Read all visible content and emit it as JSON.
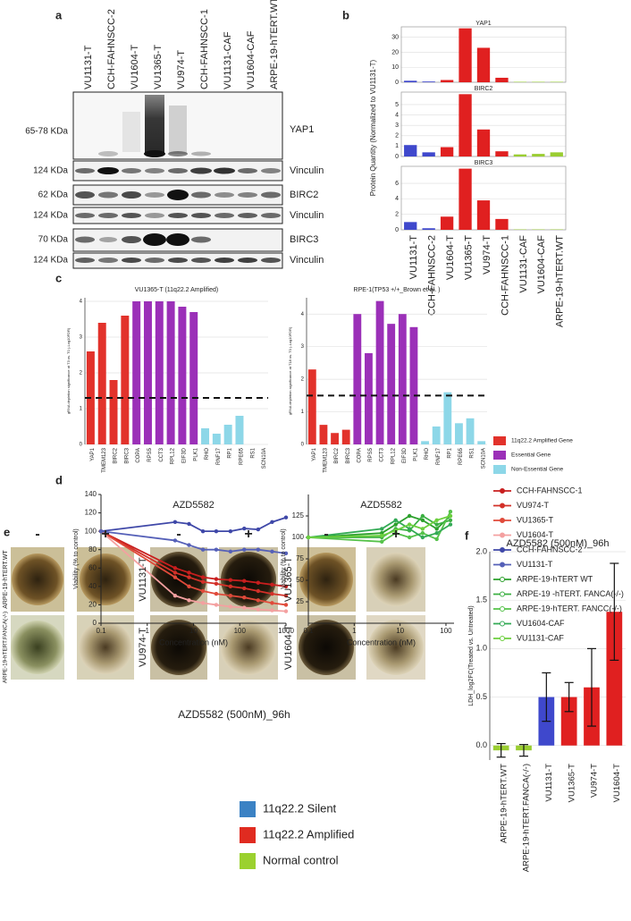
{
  "panel_labels": [
    "a",
    "b",
    "c",
    "d",
    "e",
    "f"
  ],
  "blot": {
    "lanes": [
      {
        "label": "VU1131-T",
        "color": "#3a7dc9"
      },
      {
        "label": "CCH-FAHNSCC-2",
        "color": "#3a7dc9"
      },
      {
        "label": "VU1604-T",
        "color": "#e02b20"
      },
      {
        "label": "VU1365-T",
        "color": "#e02b20"
      },
      {
        "label": "VU974-T",
        "color": "#e02b20"
      },
      {
        "label": "CCH-FAHNSCC-1",
        "color": "#e02b20"
      },
      {
        "label": "VU1131-CAF",
        "color": "#1fa83a"
      },
      {
        "label": "VU1604-CAF",
        "color": "#1fa83a"
      },
      {
        "label": "ARPE-19-hTERT.WT",
        "color": "#1fa83a"
      }
    ],
    "rows": [
      {
        "size": "65-78 KDa",
        "protein": "YAP1"
      },
      {
        "size": "124 KDa",
        "protein": "Vinculin"
      },
      {
        "size": "62 KDa",
        "protein": "BIRC2"
      },
      {
        "size": "124 KDa",
        "protein": "Vinculin"
      },
      {
        "size": "70 KDa",
        "protein": "BIRC3"
      },
      {
        "size": "124 KDa",
        "protein": "Vinculin"
      }
    ]
  },
  "chart_data": [
    {
      "type": "faceted_bar",
      "ylabel": "Protein Quantity (Normalized to VU1131-T)",
      "categories": [
        "VU1131-T",
        "CCH-FAHNSCC-2",
        "VU1604-T",
        "VU1365-T",
        "VU974-T",
        "CCH-FAHNSCC-1",
        "VU1131-CAF",
        "VU1604-CAF",
        "ARPE-19-hTERT.WT"
      ],
      "colors": [
        "#3f48cc",
        "#3f48cc",
        "#e02020",
        "#e02020",
        "#e02020",
        "#e02020",
        "#9acd32",
        "#9acd32",
        "#9acd32"
      ],
      "grid": true,
      "facets": [
        {
          "title": "YAP1",
          "values": [
            1,
            0.5,
            1.5,
            36,
            23,
            3,
            0.3,
            0.3,
            0.3
          ],
          "ylim": [
            0,
            37
          ],
          "yticks": [
            0,
            10,
            20,
            30
          ]
        },
        {
          "title": "BIRC2",
          "values": [
            1.1,
            0.4,
            0.9,
            6,
            2.6,
            0.5,
            0.2,
            0.25,
            0.4
          ],
          "ylim": [
            0,
            6.2
          ],
          "yticks": [
            0,
            1,
            2,
            3,
            4,
            5
          ]
        },
        {
          "title": "BIRC3",
          "values": [
            1,
            0.2,
            1.7,
            7.9,
            3.8,
            1.4,
            0.05,
            0.05,
            0.05
          ],
          "ylim": [
            0,
            8.2
          ],
          "yticks": [
            0,
            2,
            4,
            6
          ]
        }
      ]
    },
    {
      "type": "bar",
      "title": "VU1365-T (11q22.2 Amplified)",
      "ylabel": "gRNA depletion significance at T3 vs. T0 (-Log10FDR)",
      "categories": [
        "YAP1",
        "TMEM123",
        "BIRC2",
        "BIRC3",
        "COPA",
        "RPS5",
        "CCT3",
        "RPL12",
        "EIF3D",
        "PLK1",
        "RHO",
        "RNF17",
        "RP1",
        "RPE65",
        "RS1",
        "SCN10A"
      ],
      "values": [
        2.6,
        3.4,
        1.8,
        3.6,
        4,
        4,
        4,
        4,
        3.85,
        3.7,
        0.45,
        0.3,
        0.55,
        0.8,
        0,
        0
      ],
      "colors": [
        "#e2322b",
        "#e2322b",
        "#e2322b",
        "#e2322b",
        "#9b30b8",
        "#9b30b8",
        "#9b30b8",
        "#9b30b8",
        "#9b30b8",
        "#9b30b8",
        "#8dd7e8",
        "#8dd7e8",
        "#8dd7e8",
        "#8dd7e8",
        "#8dd7e8",
        "#8dd7e8"
      ],
      "ylim": [
        0,
        4.1
      ],
      "yticks": [
        0,
        1,
        2,
        3,
        4
      ],
      "threshold": 1.3,
      "grid": true
    },
    {
      "type": "bar",
      "title": "RPE-1(TP53 +/+_Brown et al. )",
      "ylabel": "gRNA depletion significance at T18 vs. T0 (-Log10FDR)",
      "categories": [
        "YAP1",
        "TMEM123",
        "BIRC2",
        "BIRC3",
        "COPA",
        "RPS5",
        "CCT3",
        "RPL12",
        "EIF3D",
        "PLK1",
        "RHO",
        "RNF17",
        "RP1",
        "RPE65",
        "RS1",
        "SCN10A"
      ],
      "values": [
        2.3,
        0.6,
        0.35,
        0.45,
        4,
        2.8,
        4.4,
        3.7,
        4,
        3.6,
        0.1,
        0.55,
        1.6,
        0.65,
        0.8,
        0.1
      ],
      "colors": [
        "#e2322b",
        "#e2322b",
        "#e2322b",
        "#e2322b",
        "#9b30b8",
        "#9b30b8",
        "#9b30b8",
        "#9b30b8",
        "#9b30b8",
        "#9b30b8",
        "#8dd7e8",
        "#8dd7e8",
        "#8dd7e8",
        "#8dd7e8",
        "#8dd7e8",
        "#8dd7e8"
      ],
      "ylim": [
        0,
        4.5
      ],
      "yticks": [
        0,
        1,
        2,
        3,
        4
      ],
      "threshold": 1.5,
      "grid": true,
      "legend": [
        {
          "name": "11q22.2 Amplified Gene",
          "color": "#e2322b"
        },
        {
          "name": "Essential Gene",
          "color": "#9b30b8"
        },
        {
          "name": "Non-Essential Gene",
          "color": "#8dd7e8"
        }
      ]
    },
    {
      "type": "line",
      "title": "AZD5582",
      "xlabel": "Concentration (nM)",
      "ylabel": "Viability (% to control)",
      "xscale": "log",
      "x": [
        0.1,
        4,
        8,
        16,
        31,
        63,
        125,
        250,
        500,
        1000
      ],
      "xlim": [
        0.1,
        1000
      ],
      "xticks": [
        0.1,
        1,
        10,
        100,
        1000
      ],
      "ylim": [
        0,
        140
      ],
      "yticks": [
        0,
        20,
        40,
        60,
        80,
        100,
        120,
        140
      ],
      "series": [
        {
          "name": "CCH-FAHNSCC-1",
          "color": "#c81e1e",
          "values": [
            100,
            60,
            55,
            50,
            48,
            47,
            46,
            44,
            42,
            40
          ]
        },
        {
          "name": "VU974-T",
          "color": "#d33028",
          "values": [
            100,
            55,
            50,
            45,
            43,
            40,
            38,
            35,
            32,
            30
          ]
        },
        {
          "name": "VU1365-T",
          "color": "#e04a3a",
          "values": [
            100,
            50,
            40,
            35,
            32,
            30,
            28,
            25,
            22,
            20
          ]
        },
        {
          "name": "VU1604-T",
          "color": "#f4a0a0",
          "values": [
            100,
            30,
            25,
            22,
            20,
            18,
            17,
            15,
            14,
            13
          ]
        },
        {
          "name": "CCH-FAHNSCC-2",
          "color": "#3f48a8",
          "values": [
            100,
            110,
            108,
            100,
            100,
            100,
            103,
            102,
            110,
            115
          ]
        },
        {
          "name": "VU1131-T",
          "color": "#5560b8",
          "values": [
            100,
            90,
            85,
            80,
            80,
            78,
            80,
            80,
            78,
            76
          ]
        }
      ]
    },
    {
      "type": "line",
      "title": "AZD5582",
      "xlabel": "Concentration (nM)",
      "ylabel": "Viability (% to control)",
      "xscale": "log",
      "x": [
        0.1,
        4,
        8,
        16,
        31,
        63,
        125
      ],
      "xlim": [
        0.1,
        150
      ],
      "xticks": [
        0.1,
        1,
        10,
        100
      ],
      "ylim": [
        0,
        150
      ],
      "yticks": [
        25,
        50,
        75,
        100,
        125
      ],
      "series": [
        {
          "name": "ARPE-19-hTERT WT",
          "color": "#2ca02c",
          "values": [
            100,
            105,
            115,
            125,
            120,
            110,
            125
          ]
        },
        {
          "name": "ARPE-19 -hTERT. FANCA(-/-)",
          "color": "#3cb043",
          "values": [
            100,
            100,
            110,
            108,
            125,
            115,
            120
          ]
        },
        {
          "name": "ARPE-19-hTERT. FANCC(-/-)",
          "color": "#55c24a",
          "values": [
            100,
            95,
            105,
            100,
            105,
            98,
            130
          ]
        },
        {
          "name": "VU1604-CAF",
          "color": "#33aa55",
          "values": [
            100,
            110,
            120,
            110,
            100,
            105,
            115
          ]
        },
        {
          "name": "VU1131-CAF",
          "color": "#6ccf3e",
          "values": [
            100,
            102,
            108,
            115,
            110,
            120,
            125
          ]
        }
      ]
    },
    {
      "type": "bar",
      "title": "AZD5582 (500nM)_96h",
      "ylabel": "LDH_log2FC(Treated vs. Untreated)",
      "categories": [
        "ARPE-19-hTERT.WT",
        "ARPE-19-hTERT.FANCA(-/-)",
        "VU1131-T",
        "VU1365-T",
        "VU974-T",
        "VU1604-T"
      ],
      "values": [
        -0.05,
        -0.05,
        0.5,
        0.5,
        0.6,
        1.38
      ],
      "errors": [
        0.07,
        0.06,
        0.25,
        0.15,
        0.4,
        0.5
      ],
      "colors": [
        "#9acd32",
        "#9acd32",
        "#3f48cc",
        "#e02020",
        "#e02020",
        "#e02020"
      ],
      "ylim": [
        -0.15,
        2.0
      ],
      "yticks": [
        {
          "value": 0,
          "label": "0.0"
        },
        0.5,
        {
          "value": 1,
          "label": "1.0"
        },
        1.5,
        {
          "value": 2,
          "label": "2.0"
        }
      ],
      "grid": true
    }
  ],
  "spheroids": {
    "treatments": [
      {
        "label": "-",
        "color": "#3a7dc9"
      },
      {
        "label": "+",
        "color": "#e02b20"
      },
      {
        "label": "-",
        "color": "#3a7dc9"
      },
      {
        "label": "+",
        "color": "#e02b20"
      },
      {
        "label": "-",
        "color": "#3a7dc9"
      },
      {
        "label": "+",
        "color": "#e02b20"
      }
    ],
    "cell_lines": [
      {
        "label": "ARPE-19-hTERT.WT",
        "color": "#1fa83a"
      },
      {
        "label": "VU1131-T",
        "color": "#3a7dc9"
      },
      {
        "label": "VU1365-T",
        "color": "#e02b20"
      },
      {
        "label": "ARPE-19-hTERT.FANCA(-/-)",
        "color": "#1fa83a"
      },
      {
        "label": "VU974-T",
        "color": "#e02b20"
      },
      {
        "label": "VU1604-T",
        "color": "#e02b20"
      }
    ],
    "caption": "AZD5582 (500nM)_96h"
  },
  "legend": [
    {
      "label": "11q22.2 Silent",
      "color": "#3b82c4"
    },
    {
      "label": "11q22.2 Amplified",
      "color": "#e02b20"
    },
    {
      "label": "Normal control",
      "color": "#9bd12f"
    }
  ]
}
